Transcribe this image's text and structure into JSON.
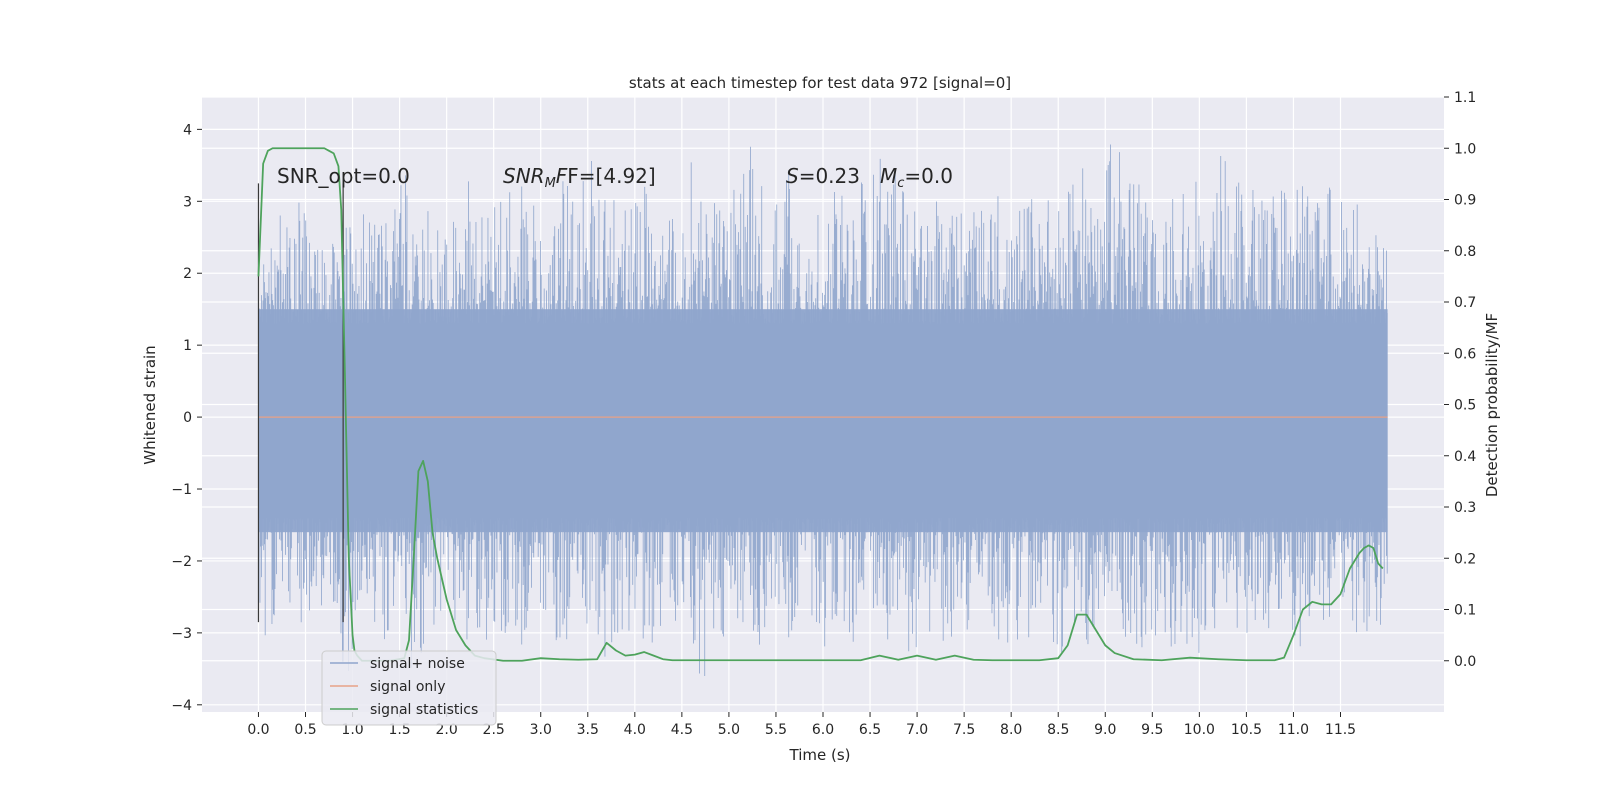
{
  "chart_data": {
    "type": "line",
    "title": "stats at each timestep for test data 972 [signal=0]",
    "xlabel": "Time (s)",
    "ylabel": "Whitened strain",
    "y2label": "Detection probability/MF",
    "xlim": [
      -0.6,
      12.6
    ],
    "ylim": [
      -4.1,
      4.45
    ],
    "y2lim": [
      -0.1,
      1.1
    ],
    "xticks": [
      0.0,
      0.5,
      1.0,
      1.5,
      2.0,
      2.5,
      3.0,
      3.5,
      4.0,
      4.5,
      5.0,
      5.5,
      6.0,
      6.5,
      7.0,
      7.5,
      8.0,
      8.5,
      9.0,
      9.5,
      10.0,
      10.5,
      11.0,
      11.5
    ],
    "xtick_labels": [
      "0.0",
      "0.5",
      "1.0",
      "1.5",
      "2.0",
      "2.5",
      "3.0",
      "3.5",
      "4.0",
      "4.5",
      "5.0",
      "5.5",
      "6.0",
      "6.5",
      "7.0",
      "7.5",
      "8.0",
      "8.5",
      "9.0",
      "9.5",
      "10.0",
      "10.5",
      "11.0",
      "11.5"
    ],
    "yticks": [
      -4,
      -3,
      -2,
      -1,
      0,
      1,
      2,
      3,
      4
    ],
    "ytick_labels": [
      "−4",
      "−3",
      "−2",
      "−1",
      "0",
      "1",
      "2",
      "3",
      "4"
    ],
    "y2ticks": [
      0.0,
      0.1,
      0.2,
      0.3,
      0.4,
      0.5,
      0.6,
      0.7,
      0.8,
      0.9,
      1.0,
      1.1
    ],
    "y2tick_labels": [
      "0.0",
      "0.1",
      "0.2",
      "0.3",
      "0.4",
      "0.5",
      "0.6",
      "0.7",
      "0.8",
      "0.9",
      "1.0",
      "1.1"
    ],
    "grid": true,
    "legend_position": "lower-left",
    "vlines": [
      0.0,
      0.9
    ],
    "annotations": {
      "snr_opt": "SNR_opt=0.0",
      "snr_mf_sym": "SNR",
      "snr_mf_sub": "M",
      "snr_mf_rest": "F=[4.92]",
      "s_sym": "S",
      "s_rest": "=0.23",
      "mc_sym": "M",
      "mc_sub": "c",
      "mc_rest": "=0.0"
    },
    "series": [
      {
        "name": "signal+ noise",
        "color": "#8fa5cc",
        "axis": "left",
        "x_range": [
          0.0,
          12.0
        ],
        "upper_envelope": [
          2.5,
          2.9,
          3.2,
          2.6,
          2.8,
          3.0,
          2.7,
          3.4,
          2.9,
          3.1,
          2.8,
          3.3,
          3.0,
          3.6,
          3.2,
          2.9,
          3.3,
          3.7,
          3.1,
          3.0,
          3.4,
          3.1,
          3.6,
          3.2,
          3.0,
          3.4,
          3.9,
          3.2,
          3.5,
          3.0,
          3.3,
          3.1,
          3.4,
          3.6,
          3.3,
          3.0,
          3.2,
          3.4,
          3.1,
          3.6,
          3.0,
          3.4,
          3.2,
          3.5,
          3.1,
          3.9,
          3.3,
          3.0,
          3.6,
          3.4,
          3.2,
          4.1,
          3.3,
          3.1,
          3.4,
          3.6,
          3.2,
          3.0,
          3.2,
          2.6
        ],
        "lower_envelope": [
          -3.2,
          -2.8,
          -3.0,
          -2.7,
          -3.6,
          -2.9,
          -3.1,
          -2.8,
          -3.5,
          -3.0,
          -2.9,
          -3.2,
          -3.1,
          -3.7,
          -3.0,
          -3.3,
          -3.1,
          -2.9,
          -3.6,
          -3.0,
          -3.4,
          -3.2,
          -3.0,
          -3.7,
          -3.1,
          -2.9,
          -3.2,
          -3.0,
          -3.3,
          -3.1,
          -3.6,
          -3.2,
          -2.9,
          -3.3,
          -3.4,
          -3.0,
          -3.2,
          -3.1,
          -2.9,
          -3.4,
          -3.1,
          -3.0,
          -3.3,
          -2.9,
          -3.2,
          -3.0,
          -3.4,
          -3.1,
          -3.2,
          -3.3,
          -3.0,
          -3.2,
          -3.1,
          -3.3,
          -3.0,
          -3.2,
          -3.1,
          -3.0,
          -3.0,
          -2.9
        ],
        "core_band": [
          -1.6,
          1.5
        ]
      },
      {
        "name": "signal only",
        "color": "#e8a187",
        "axis": "left",
        "x": [
          0.0,
          12.0
        ],
        "y": [
          0.0,
          0.0
        ]
      },
      {
        "name": "signal statistics",
        "color": "#4ea35c",
        "axis": "right",
        "x": [
          0.0,
          0.05,
          0.1,
          0.15,
          0.2,
          0.3,
          0.4,
          0.5,
          0.6,
          0.7,
          0.75,
          0.8,
          0.85,
          0.88,
          0.92,
          0.96,
          1.0,
          1.02,
          1.05,
          1.1,
          1.2,
          1.4,
          1.55,
          1.6,
          1.65,
          1.7,
          1.75,
          1.8,
          1.85,
          1.9,
          1.95,
          2.0,
          2.1,
          2.2,
          2.3,
          2.4,
          2.6,
          2.8,
          3.0,
          3.2,
          3.4,
          3.6,
          3.7,
          3.8,
          3.9,
          4.0,
          4.1,
          4.2,
          4.3,
          4.4,
          4.6,
          5.0,
          5.5,
          6.0,
          6.4,
          6.6,
          6.8,
          7.0,
          7.2,
          7.4,
          7.6,
          7.8,
          8.0,
          8.3,
          8.5,
          8.6,
          8.7,
          8.8,
          8.9,
          9.0,
          9.1,
          9.3,
          9.6,
          9.9,
          10.2,
          10.5,
          10.8,
          10.9,
          11.0,
          11.1,
          11.2,
          11.3,
          11.4,
          11.5,
          11.6,
          11.7,
          11.75,
          11.8,
          11.85,
          11.9,
          11.95
        ],
        "y": [
          0.75,
          0.97,
          0.995,
          1.0,
          1.0,
          1.0,
          1.0,
          1.0,
          1.0,
          1.0,
          0.995,
          0.99,
          0.965,
          0.88,
          0.55,
          0.2,
          0.05,
          0.02,
          0.01,
          0.0,
          0.0,
          0.0,
          0.005,
          0.04,
          0.2,
          0.37,
          0.39,
          0.35,
          0.25,
          0.2,
          0.16,
          0.12,
          0.06,
          0.03,
          0.01,
          0.005,
          0.0,
          0.0,
          0.005,
          0.003,
          0.002,
          0.003,
          0.035,
          0.02,
          0.01,
          0.012,
          0.017,
          0.01,
          0.003,
          0.001,
          0.001,
          0.001,
          0.001,
          0.001,
          0.001,
          0.01,
          0.002,
          0.01,
          0.002,
          0.01,
          0.002,
          0.001,
          0.001,
          0.001,
          0.005,
          0.03,
          0.09,
          0.09,
          0.06,
          0.03,
          0.015,
          0.003,
          0.001,
          0.006,
          0.003,
          0.001,
          0.001,
          0.006,
          0.05,
          0.1,
          0.115,
          0.11,
          0.11,
          0.13,
          0.18,
          0.21,
          0.22,
          0.225,
          0.22,
          0.19,
          0.18
        ]
      }
    ]
  }
}
